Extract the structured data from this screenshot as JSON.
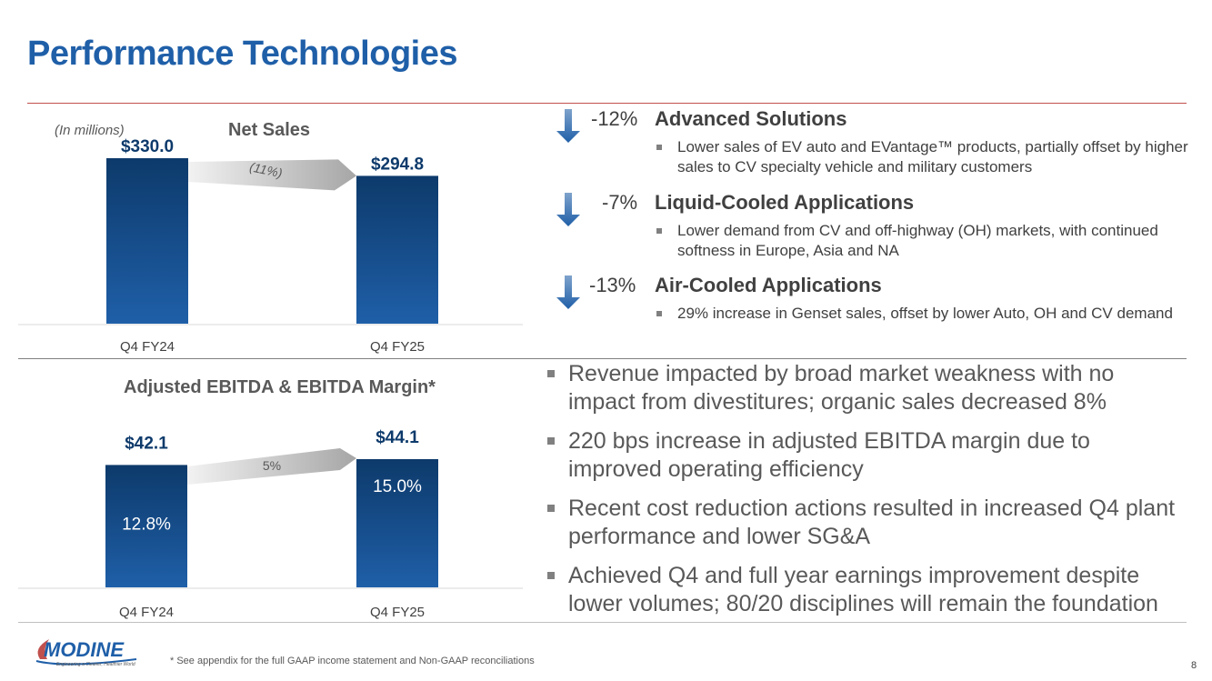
{
  "title": "Performance Technologies",
  "chart_data": [
    {
      "type": "bar",
      "title": "Net Sales",
      "unit_note": "(In millions)",
      "categories": [
        "Q4 FY24",
        "Q4 FY25"
      ],
      "values": [
        330.0,
        294.8
      ],
      "value_labels": [
        "$330.0",
        "$294.8"
      ],
      "change_label": "(11%)",
      "ylim": [
        0,
        330
      ]
    },
    {
      "type": "bar",
      "title": "Adjusted EBITDA & EBITDA Margin*",
      "categories": [
        "Q4 FY24",
        "Q4 FY25"
      ],
      "values": [
        42.1,
        44.1
      ],
      "value_labels": [
        "$42.1",
        "$44.1"
      ],
      "margins": [
        "12.8%",
        "15.0%"
      ],
      "change_label": "5%",
      "ylim": [
        0,
        44.1
      ]
    }
  ],
  "segments": [
    {
      "pct": "-12%",
      "name": "Advanced Solutions",
      "bullet": "Lower sales of EV auto and EVantage™ products, partially offset by higher sales to CV specialty vehicle and military customers"
    },
    {
      "pct": "-7%",
      "name": "Liquid-Cooled Applications",
      "bullet": "Lower demand from CV and off-highway (OH) markets, with continued softness in Europe, Asia and NA"
    },
    {
      "pct": "-13%",
      "name": "Air-Cooled Applications",
      "bullet": "29% increase in Genset sales, offset by lower Auto, OH and CV demand"
    }
  ],
  "bullets": [
    "Revenue impacted by broad market weakness with no impact from divestitures; organic sales decreased 8%",
    "220 bps increase in adjusted EBITDA margin due to improved operating efficiency",
    "Recent cost reduction actions resulted in increased Q4 plant performance and lower SG&A",
    "Achieved Q4 and full year earnings improvement despite lower volumes; 80/20 disciplines will remain the foundation"
  ],
  "footnote": "* See appendix for the full GAAP income statement and Non-GAAP reconciliations",
  "page_number": "8",
  "logo": {
    "name": "MODINE",
    "tagline": "Engineering a Cleaner, Healthier World"
  },
  "colors": {
    "title": "#1f5fa8",
    "bar_dark": "#0d3a6b",
    "bar_light": "#1f5fa8",
    "rule": "#c0504d"
  }
}
